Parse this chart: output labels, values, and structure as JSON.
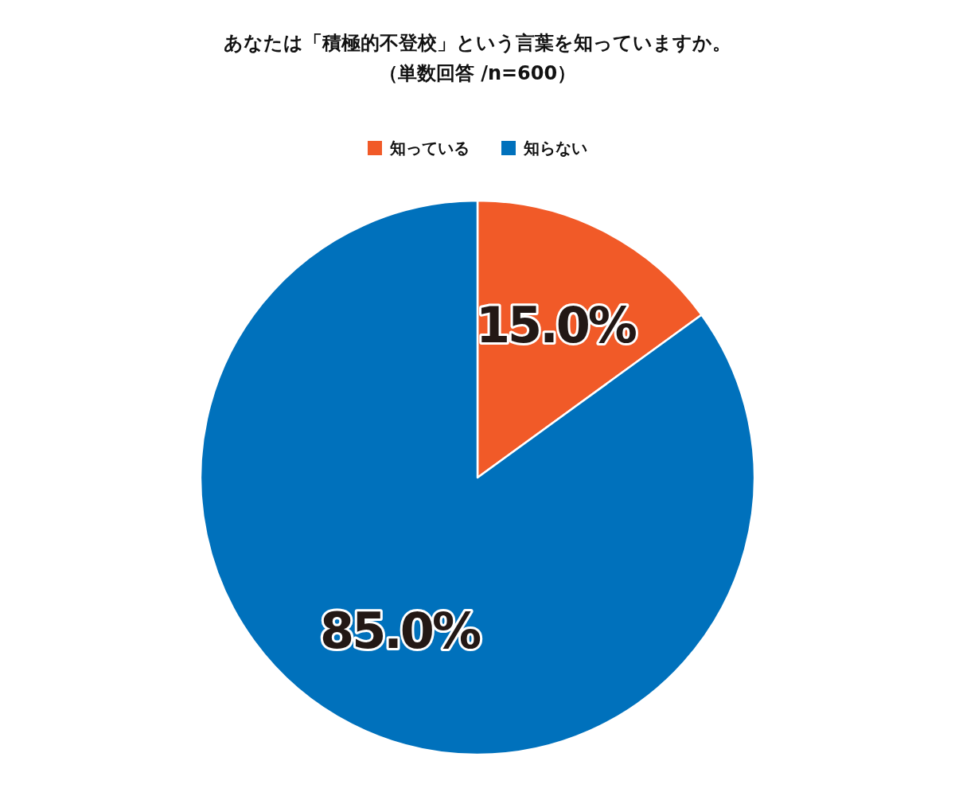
{
  "chart_data": {
    "type": "pie",
    "title": "あなたは「積極的不登校」という言葉を知っていますか。",
    "subtitle": "（単数回答 /n=600）",
    "categories": [
      "知っている",
      "知らない"
    ],
    "values": [
      15.0,
      85.0
    ],
    "colors": [
      "#f15a28",
      "#0071bc"
    ],
    "value_labels": [
      "15.0%",
      "85.0%"
    ],
    "legend": "top"
  }
}
